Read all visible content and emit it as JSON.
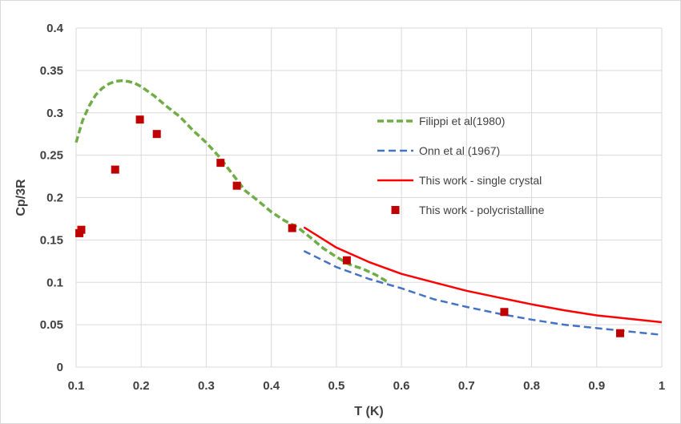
{
  "chart_data": {
    "type": "line",
    "xlabel": "T (K)",
    "ylabel": "Cp/3R",
    "xlim": [
      0.1,
      1
    ],
    "ylim": [
      0,
      0.4
    ],
    "x_ticks": [
      "0.1",
      "0.2",
      "0.3",
      "0.4",
      "0.5",
      "0.6",
      "0.7",
      "0.8",
      "0.9",
      "1"
    ],
    "y_ticks": [
      "0",
      "0.05",
      "0.1",
      "0.15",
      "0.2",
      "0.25",
      "0.3",
      "0.35",
      "0.4"
    ],
    "grid": true,
    "legend_position": "right",
    "series": [
      {
        "name": "Filippi et al(1980)",
        "kind": "line",
        "style": "dashed",
        "color": "#70ad47",
        "x": [
          0.1,
          0.11,
          0.12,
          0.13,
          0.14,
          0.15,
          0.16,
          0.17,
          0.18,
          0.19,
          0.2,
          0.22,
          0.24,
          0.26,
          0.28,
          0.3,
          0.32,
          0.34,
          0.36,
          0.38,
          0.4,
          0.42,
          0.44,
          0.46,
          0.48,
          0.5,
          0.52,
          0.54,
          0.56,
          0.58
        ],
        "y": [
          0.265,
          0.291,
          0.308,
          0.321,
          0.329,
          0.334,
          0.337,
          0.338,
          0.337,
          0.335,
          0.331,
          0.32,
          0.307,
          0.295,
          0.279,
          0.265,
          0.248,
          0.228,
          0.208,
          0.196,
          0.183,
          0.173,
          0.165,
          0.153,
          0.14,
          0.13,
          0.121,
          0.116,
          0.109,
          0.1
        ]
      },
      {
        "name": "Onn et al (1967)",
        "kind": "line",
        "style": "dashed",
        "color": "#4472c4",
        "x": [
          0.45,
          0.5,
          0.55,
          0.6,
          0.65,
          0.7,
          0.75,
          0.8,
          0.85,
          0.9,
          0.95,
          1.0
        ],
        "y": [
          0.137,
          0.118,
          0.104,
          0.093,
          0.08,
          0.071,
          0.063,
          0.056,
          0.05,
          0.046,
          0.042,
          0.038
        ]
      },
      {
        "name": "This work - single crystal",
        "kind": "line",
        "style": "solid",
        "color": "#ff0000",
        "x": [
          0.45,
          0.5,
          0.55,
          0.6,
          0.65,
          0.7,
          0.75,
          0.8,
          0.85,
          0.9,
          0.95,
          1.0
        ],
        "y": [
          0.165,
          0.141,
          0.124,
          0.11,
          0.1,
          0.09,
          0.082,
          0.074,
          0.067,
          0.061,
          0.057,
          0.053
        ]
      },
      {
        "name": "This work - polycristalline",
        "kind": "scatter",
        "marker": "square",
        "color": "#c00000",
        "x": [
          0.105,
          0.108,
          0.16,
          0.198,
          0.224,
          0.322,
          0.347,
          0.432,
          0.516,
          0.758,
          0.936
        ],
        "y": [
          0.158,
          0.162,
          0.233,
          0.292,
          0.275,
          0.241,
          0.214,
          0.164,
          0.126,
          0.065,
          0.04
        ]
      }
    ]
  }
}
